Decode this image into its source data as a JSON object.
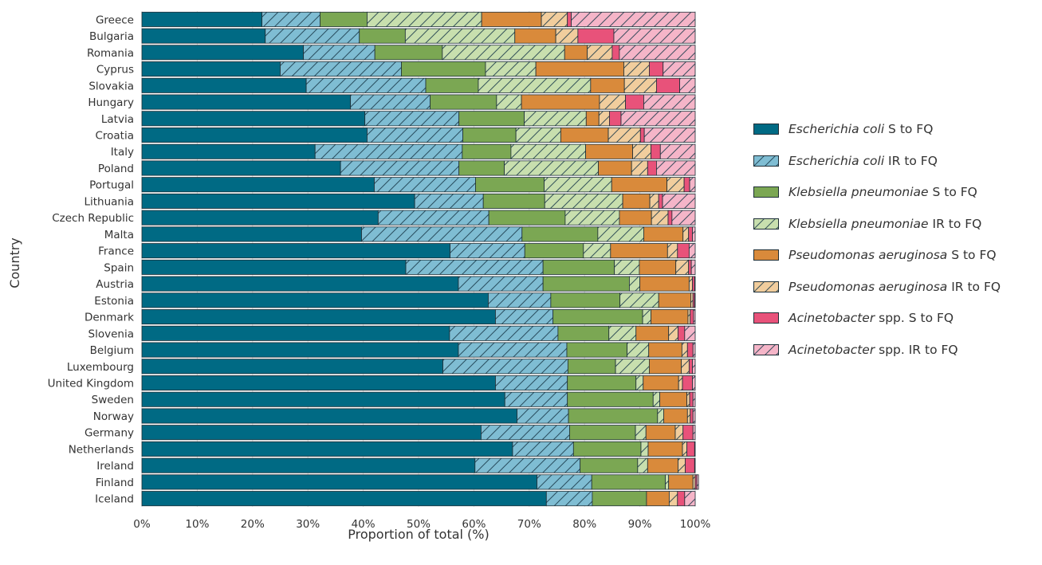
{
  "chart_data": {
    "type": "bar",
    "orientation": "horizontal",
    "stacked": true,
    "title": "",
    "xlabel": "Proportion of total (%)",
    "ylabel": "Country",
    "xlim": [
      0,
      100
    ],
    "xticks": [
      "0%",
      "10%",
      "20%",
      "30%",
      "40%",
      "50%",
      "60%",
      "70%",
      "80%",
      "90%",
      "100%"
    ],
    "legend_position": "right",
    "categories": [
      "Greece",
      "Bulgaria",
      "Romania",
      "Cyprus",
      "Slovakia",
      "Hungary",
      "Latvia",
      "Croatia",
      "Italy",
      "Poland",
      "Portugal",
      "Lithuania",
      "Czech Republic",
      "Malta",
      "France",
      "Spain",
      "Austria",
      "Estonia",
      "Denmark",
      "Slovenia",
      "Belgium",
      "Luxembourg",
      "United Kingdom",
      "Sweden",
      "Norway",
      "Germany",
      "Netherlands",
      "Ireland",
      "Finland",
      "Iceland"
    ],
    "series": [
      {
        "name": "Escherichia coli S to FQ",
        "name_italic": "Escherichia coli",
        "name_rest": " S to FQ",
        "color": "#006a84",
        "hatched": false,
        "values": [
          21.7,
          22.3,
          29.2,
          25.0,
          29.7,
          37.7,
          40.3,
          40.7,
          31.3,
          35.9,
          42.0,
          49.3,
          42.7,
          39.7,
          55.7,
          47.7,
          57.2,
          62.6,
          63.9,
          55.6,
          57.2,
          54.4,
          63.9,
          65.6,
          67.8,
          61.3,
          67.0,
          60.2,
          71.4,
          73.1
        ]
      },
      {
        "name": "Escherichia coli IR to FQ",
        "name_italic": "Escherichia coli",
        "name_rest": " IR to FQ",
        "color": "#7fbdd3",
        "hatched": true,
        "values": [
          10.5,
          17.0,
          12.9,
          21.9,
          21.6,
          14.4,
          17.0,
          17.3,
          26.6,
          21.4,
          18.3,
          12.4,
          20.0,
          29.0,
          13.5,
          24.8,
          15.3,
          11.3,
          10.4,
          19.6,
          19.6,
          22.6,
          13.0,
          11.3,
          9.3,
          16.0,
          11.0,
          19.0,
          9.9,
          8.3
        ]
      },
      {
        "name": "Klebsiella pneumoniae S to FQ",
        "name_italic": "Klebsiella pneumoniae",
        "name_rest": " S to FQ",
        "color": "#7ba753",
        "hatched": false,
        "values": [
          8.5,
          8.3,
          12.2,
          15.2,
          9.5,
          12.0,
          11.8,
          9.6,
          8.8,
          8.2,
          12.4,
          11.1,
          13.8,
          13.7,
          10.6,
          12.9,
          15.6,
          12.5,
          16.2,
          9.2,
          10.9,
          8.6,
          12.4,
          15.5,
          16.1,
          11.9,
          12.2,
          10.4,
          13.3,
          9.8
        ]
      },
      {
        "name": "Klebsiella pneumoniae IR to FQ",
        "name_italic": "Klebsiella pneumoniae",
        "name_rest": " IR to FQ",
        "color": "#c8dfae",
        "hatched": true,
        "values": [
          20.7,
          19.8,
          22.1,
          9.1,
          20.3,
          4.5,
          11.2,
          8.1,
          13.5,
          17.0,
          12.2,
          14.1,
          9.8,
          8.3,
          4.9,
          4.5,
          1.9,
          7.0,
          1.5,
          4.9,
          3.9,
          6.1,
          1.3,
          1.2,
          1.1,
          1.9,
          1.3,
          1.8,
          0.6,
          0.0
        ]
      },
      {
        "name": "Pseudomonas aeruginosa S to FQ",
        "name_italic": "Pseudomonas aeruginosa",
        "name_rest": " S to FQ",
        "color": "#d98a3b",
        "hatched": false,
        "values": [
          10.8,
          7.4,
          4.1,
          15.9,
          6.1,
          14.1,
          2.3,
          8.6,
          8.5,
          6.0,
          10.0,
          4.9,
          5.8,
          7.1,
          10.3,
          6.6,
          8.9,
          5.8,
          6.7,
          5.9,
          6.0,
          5.8,
          6.4,
          4.9,
          4.3,
          5.3,
          6.2,
          5.5,
          4.4,
          4.1
        ]
      },
      {
        "name": "Pseudomonas aeruginosa IR to FQ",
        "name_italic": "Pseudomonas aeruginosa",
        "name_rest": " IR to FQ",
        "color": "#f1cd9d",
        "hatched": true,
        "values": [
          4.7,
          4.0,
          4.5,
          4.6,
          5.8,
          4.7,
          1.9,
          5.8,
          3.3,
          2.9,
          3.1,
          1.6,
          3.0,
          1.0,
          1.8,
          2.3,
          0.6,
          0.4,
          0.4,
          1.7,
          1.0,
          1.4,
          0.7,
          0.5,
          0.5,
          1.4,
          0.8,
          1.3,
          0.4,
          1.5
        ]
      },
      {
        "name": "Acinetobacter spp. S to FQ",
        "name_italic": "Acinetobacter",
        "name_rest": " spp. S to FQ",
        "color": "#e8527a",
        "hatched": false,
        "values": [
          0.7,
          6.5,
          1.3,
          2.5,
          4.2,
          3.3,
          2.1,
          0.7,
          1.7,
          1.6,
          1.0,
          0.7,
          0.7,
          0.7,
          2.1,
          0.5,
          0.4,
          0.3,
          0.6,
          1.2,
          1.0,
          0.6,
          1.8,
          0.6,
          0.5,
          1.8,
          1.4,
          1.7,
          0.3,
          1.3
        ]
      },
      {
        "name": "Acinetobacter spp. IR to FQ",
        "name_italic": "Acinetobacter",
        "name_rest": " spp. IR to FQ",
        "color": "#f5b5c8",
        "hatched": true,
        "values": [
          22.4,
          14.7,
          13.7,
          5.8,
          2.8,
          9.3,
          13.4,
          9.2,
          6.3,
          7.0,
          1.0,
          5.9,
          4.2,
          0.5,
          1.1,
          0.7,
          0.1,
          0.1,
          0.3,
          1.9,
          0.4,
          0.5,
          0.5,
          0.4,
          0.4,
          0.4,
          0.1,
          0.1,
          0.3,
          1.9
        ]
      }
    ]
  }
}
